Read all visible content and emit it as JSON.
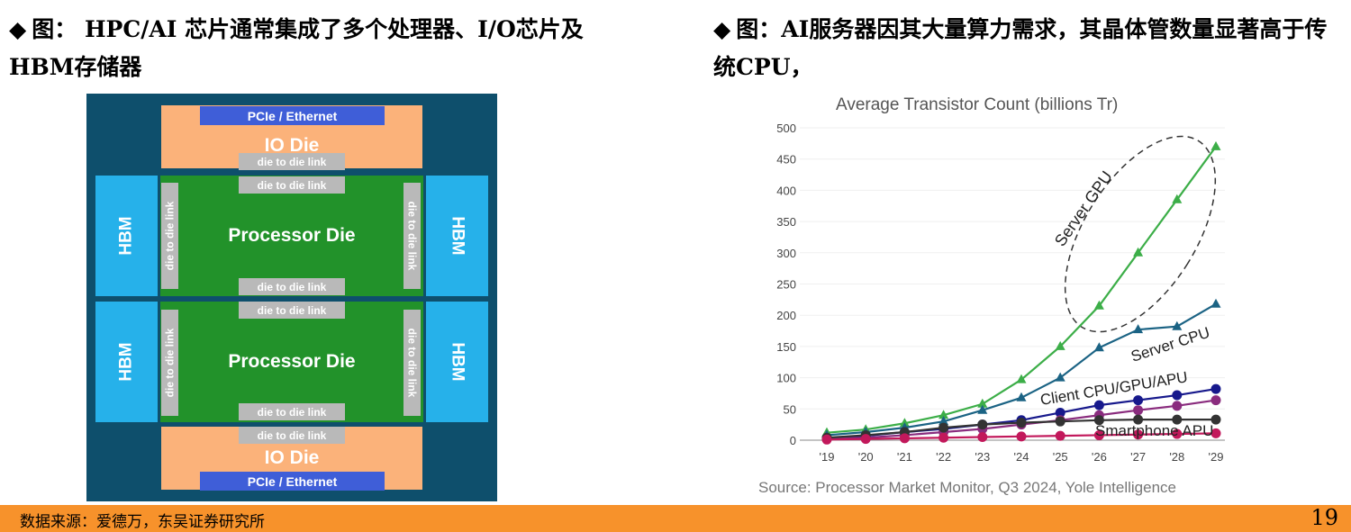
{
  "headings": {
    "bullet": "◆",
    "left": "图： HPC/AI 芯片通常集成了多个处理器、I/O芯片及HBM存储器",
    "right": "图：AI服务器因其大量算力需求，其晶体管数量显著高于传统CPU，"
  },
  "diagram": {
    "pcie_label": "PCIe / Ethernet",
    "io_die_label": "IO Die",
    "d2d_label": "die to die link",
    "processor_label": "Processor Die",
    "hbm_label": "HBM"
  },
  "chart_data": {
    "type": "line",
    "title": "Average Transistor Count (billions Tr)",
    "source": "Source: Processor Market Monitor, Q3 2024, Yole Intelligence",
    "x": [
      "'19",
      "'20",
      "'21",
      "'22",
      "'23",
      "'24",
      "'25",
      "'26",
      "'27",
      "'28",
      "'29"
    ],
    "ylim": [
      0,
      500
    ],
    "yticks": [
      0,
      50,
      100,
      150,
      200,
      250,
      300,
      350,
      400,
      450,
      500
    ],
    "series": [
      {
        "name": "Server GPU",
        "color": "#3cae48",
        "marker": "triangle",
        "values": [
          12,
          17,
          27,
          40,
          58,
          97,
          150,
          215,
          300,
          385,
          470
        ]
      },
      {
        "name": "Server CPU",
        "color": "#1b6384",
        "marker": "triangle",
        "values": [
          8,
          13,
          20,
          30,
          48,
          68,
          100,
          148,
          177,
          182,
          218
        ]
      },
      {
        "name": "Client CPU/GPU/APU",
        "color": "#17198c",
        "marker": "circle",
        "values": [
          3,
          7,
          13,
          18,
          25,
          32,
          44,
          56,
          64,
          72,
          82
        ]
      },
      {
        "name": "",
        "color": "#8a2c7e",
        "marker": "circle",
        "values": [
          2,
          4,
          8,
          13,
          18,
          25,
          32,
          40,
          48,
          55,
          64
        ]
      },
      {
        "name": "",
        "color": "#333333",
        "marker": "circle",
        "values": [
          4,
          8,
          13,
          20,
          25,
          28,
          30,
          32,
          33,
          33,
          33
        ]
      },
      {
        "name": "Smartphone APU",
        "color": "#c2185b",
        "marker": "circle",
        "values": [
          1,
          2,
          3,
          4,
          5,
          6,
          7,
          8,
          9,
          10,
          11
        ]
      }
    ],
    "annotations": {
      "server_gpu": "Server GPU",
      "server_cpu": "Server CPU",
      "client": "Client CPU/GPU/APU",
      "smartphone": "Smartphone APU"
    }
  },
  "footer": {
    "source": "数据来源：爱德万，东吴证券研究所",
    "page": "19"
  }
}
